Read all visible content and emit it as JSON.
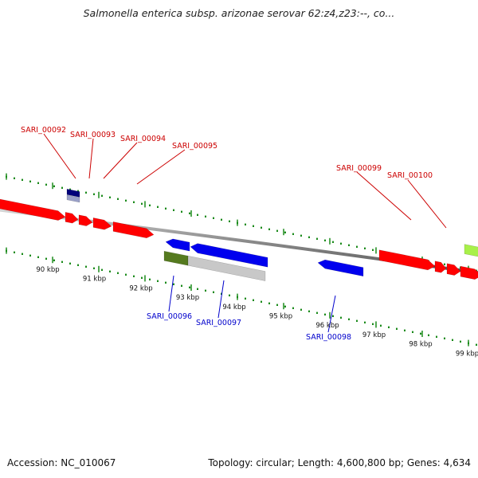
{
  "title": "Salmonella enterica subsp. arizonae serovar 62:z4,z23:--, co...",
  "footer": {
    "accession": "Accession: NC_010067",
    "summary": "Topology: circular; Length: 4,600,800 bp; Genes: 4,634"
  },
  "ruler": {
    "color": "#1a8a1a",
    "labels": [
      "90 kbp",
      "91 kbp",
      "92 kbp",
      "93 kbp",
      "94 kbp",
      "95 kbp",
      "96 kbp",
      "97 kbp",
      "98 kbp",
      "99 kbp"
    ]
  },
  "colors": {
    "forward": "#ff0000",
    "reverse": "#0000ee",
    "forward_label": "#cc0000",
    "reverse_label": "#0000cc",
    "backbone": "#888888",
    "pseudo_dark": "#00007a",
    "pseudo_light": "#9aa0c8",
    "olive": "#557a1f",
    "grey_gene": "#c8c8c8",
    "lime": "#a8f04a"
  },
  "forward_labels": [
    "SARI_00092",
    "SARI_00093",
    "SARI_00094",
    "SARI_00095",
    "SARI_00099",
    "SARI_00100"
  ],
  "reverse_labels": [
    "SARI_00096",
    "SARI_00097",
    "SARI_00098"
  ]
}
